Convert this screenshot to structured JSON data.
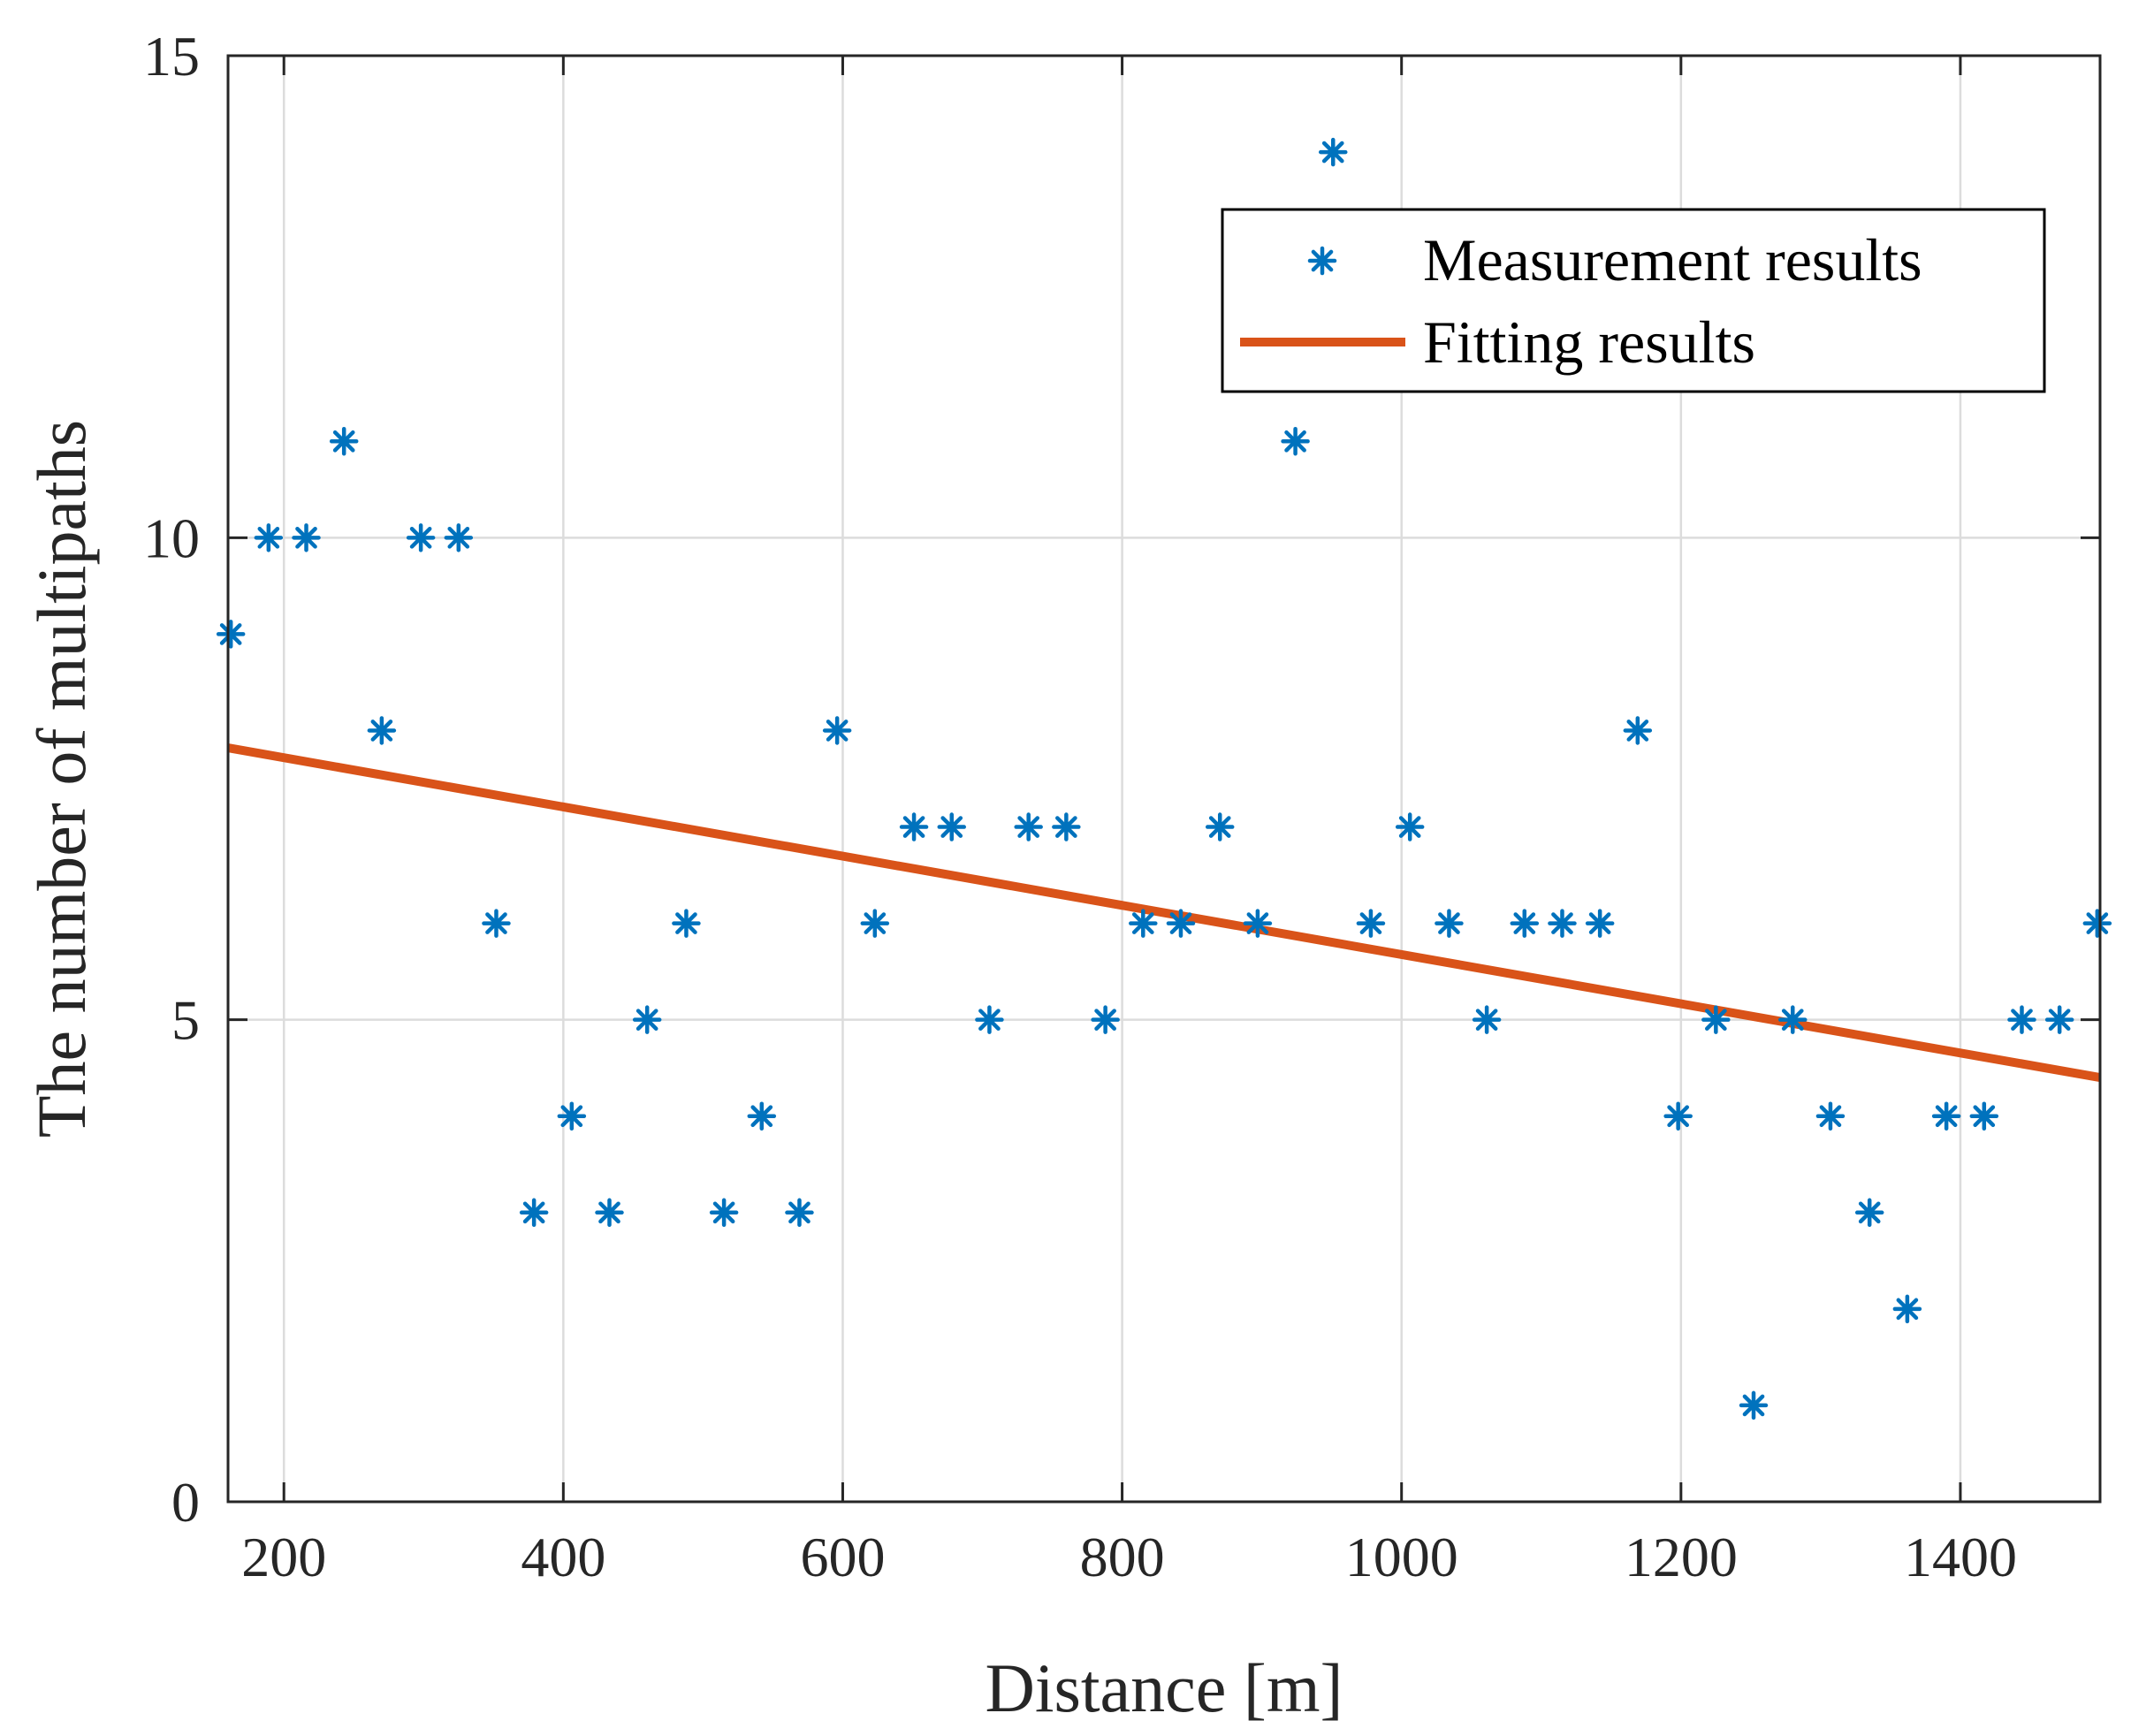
{
  "chart_data": {
    "type": "scatter",
    "title": "",
    "xlabel": "Distance [m]",
    "ylabel": "The number of multipaths",
    "xlim": [
      160,
      1500
    ],
    "ylim": [
      0,
      15
    ],
    "xticks": [
      200,
      400,
      600,
      800,
      1000,
      1200,
      1400
    ],
    "yticks": [
      0,
      5,
      10,
      15
    ],
    "grid": true,
    "legend_position": "top-right",
    "colors": {
      "measurement": "#0072BD",
      "fitting": "#D95319",
      "grid": "#dcdcdc",
      "axis": "#262626"
    },
    "series": [
      {
        "name": "Measurement results",
        "kind": "scatter",
        "marker": "asterisk",
        "x": [
          162,
          189,
          216,
          243,
          270,
          298,
          325,
          352,
          379,
          406,
          433,
          460,
          488,
          515,
          542,
          569,
          596,
          623,
          651,
          678,
          705,
          733,
          760,
          788,
          815,
          842,
          870,
          897,
          924,
          951,
          978,
          1006,
          1034,
          1061,
          1088,
          1115,
          1142,
          1169,
          1198,
          1225,
          1252,
          1280,
          1307,
          1335,
          1362,
          1390,
          1417,
          1444,
          1471,
          1498
        ],
        "y": [
          9,
          10,
          10,
          11,
          8,
          10,
          10,
          6,
          3,
          4,
          3,
          5,
          6,
          3,
          4,
          3,
          8,
          6,
          7,
          7,
          5,
          7,
          7,
          5,
          6,
          6,
          7,
          6,
          11,
          14,
          6,
          7,
          6,
          5,
          6,
          6,
          6,
          8,
          4,
          5,
          1,
          5,
          4,
          3,
          2,
          4,
          4,
          5,
          5,
          6
        ]
      },
      {
        "name": "Fitting results",
        "kind": "line",
        "x": [
          160,
          1500
        ],
        "y": [
          7.82,
          4.4
        ]
      }
    ]
  }
}
